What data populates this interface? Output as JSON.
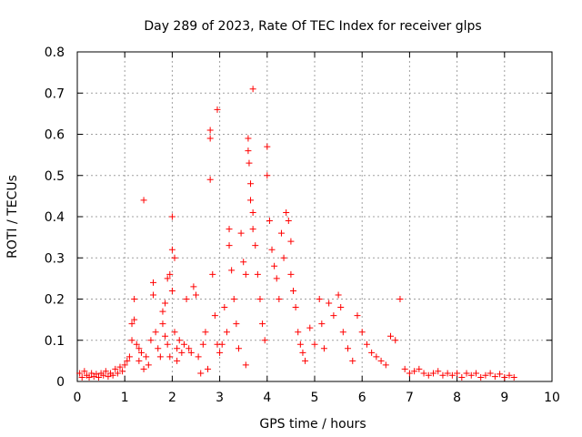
{
  "chart_data": {
    "type": "scatter",
    "title": "Day 289 of 2023, Rate Of TEC Index for receiver glps",
    "xlabel": "GPS time / hours",
    "ylabel": "ROTI / TECUs",
    "xlim": [
      0,
      10
    ],
    "ylim": [
      0,
      0.8
    ],
    "xticks": [
      0,
      1,
      2,
      3,
      4,
      5,
      6,
      7,
      8,
      9,
      10
    ],
    "yticks": [
      0,
      0.1,
      0.2,
      0.3,
      0.4,
      0.5,
      0.6,
      0.7,
      0.8
    ],
    "xtick_labels": [
      "0",
      "1",
      "2",
      "3",
      "4",
      "5",
      "6",
      "7",
      "8",
      "9",
      "10"
    ],
    "ytick_labels": [
      "0",
      "0.1",
      "0.2",
      "0.3",
      "0.4",
      "0.5",
      "0.6",
      "0.7",
      "0.8"
    ],
    "grid": true,
    "marker": "+",
    "color": "#ff0000",
    "series": [
      {
        "points": [
          [
            0.05,
            0.02
          ],
          [
            0.1,
            0.01
          ],
          [
            0.15,
            0.025
          ],
          [
            0.2,
            0.015
          ],
          [
            0.25,
            0.01
          ],
          [
            0.3,
            0.02
          ],
          [
            0.35,
            0.012
          ],
          [
            0.4,
            0.018
          ],
          [
            0.45,
            0.01
          ],
          [
            0.5,
            0.02
          ],
          [
            0.55,
            0.015
          ],
          [
            0.6,
            0.025
          ],
          [
            0.65,
            0.012
          ],
          [
            0.7,
            0.02
          ],
          [
            0.75,
            0.015
          ],
          [
            0.8,
            0.03
          ],
          [
            0.85,
            0.02
          ],
          [
            0.9,
            0.035
          ],
          [
            0.95,
            0.025
          ],
          [
            1.0,
            0.04
          ],
          [
            1.05,
            0.05
          ],
          [
            1.1,
            0.06
          ],
          [
            1.15,
            0.1
          ],
          [
            1.15,
            0.14
          ],
          [
            1.2,
            0.2
          ],
          [
            1.2,
            0.15
          ],
          [
            1.25,
            0.09
          ],
          [
            1.3,
            0.08
          ],
          [
            1.3,
            0.05
          ],
          [
            1.35,
            0.07
          ],
          [
            1.4,
            0.44
          ],
          [
            1.4,
            0.03
          ],
          [
            1.45,
            0.06
          ],
          [
            1.5,
            0.04
          ],
          [
            1.55,
            0.1
          ],
          [
            1.6,
            0.24
          ],
          [
            1.6,
            0.21
          ],
          [
            1.65,
            0.12
          ],
          [
            1.7,
            0.08
          ],
          [
            1.75,
            0.06
          ],
          [
            1.8,
            0.17
          ],
          [
            1.8,
            0.14
          ],
          [
            1.85,
            0.11
          ],
          [
            1.85,
            0.19
          ],
          [
            1.9,
            0.25
          ],
          [
            1.9,
            0.09
          ],
          [
            1.95,
            0.26
          ],
          [
            1.95,
            0.06
          ],
          [
            2.0,
            0.4
          ],
          [
            2.0,
            0.32
          ],
          [
            2.0,
            0.22
          ],
          [
            2.05,
            0.3
          ],
          [
            2.05,
            0.12
          ],
          [
            2.1,
            0.05
          ],
          [
            2.1,
            0.08
          ],
          [
            2.15,
            0.1
          ],
          [
            2.2,
            0.07
          ],
          [
            2.25,
            0.09
          ],
          [
            2.3,
            0.2
          ],
          [
            2.35,
            0.08
          ],
          [
            2.4,
            0.07
          ],
          [
            2.45,
            0.23
          ],
          [
            2.5,
            0.21
          ],
          [
            2.55,
            0.06
          ],
          [
            2.6,
            0.02
          ],
          [
            2.65,
            0.09
          ],
          [
            2.7,
            0.12
          ],
          [
            2.75,
            0.03
          ],
          [
            2.8,
            0.61
          ],
          [
            2.8,
            0.59
          ],
          [
            2.8,
            0.49
          ],
          [
            2.85,
            0.26
          ],
          [
            2.9,
            0.16
          ],
          [
            2.95,
            0.66
          ],
          [
            2.95,
            0.09
          ],
          [
            3.0,
            0.07
          ],
          [
            3.05,
            0.09
          ],
          [
            3.1,
            0.18
          ],
          [
            3.15,
            0.12
          ],
          [
            3.2,
            0.37
          ],
          [
            3.2,
            0.33
          ],
          [
            3.25,
            0.27
          ],
          [
            3.3,
            0.2
          ],
          [
            3.35,
            0.14
          ],
          [
            3.4,
            0.08
          ],
          [
            3.45,
            0.36
          ],
          [
            3.5,
            0.29
          ],
          [
            3.55,
            0.26
          ],
          [
            3.55,
            0.04
          ],
          [
            3.6,
            0.59
          ],
          [
            3.6,
            0.56
          ],
          [
            3.62,
            0.53
          ],
          [
            3.65,
            0.48
          ],
          [
            3.65,
            0.44
          ],
          [
            3.7,
            0.71
          ],
          [
            3.7,
            0.41
          ],
          [
            3.7,
            0.37
          ],
          [
            3.75,
            0.33
          ],
          [
            3.8,
            0.26
          ],
          [
            3.85,
            0.2
          ],
          [
            3.9,
            0.14
          ],
          [
            3.95,
            0.1
          ],
          [
            4.0,
            0.57
          ],
          [
            4.0,
            0.5
          ],
          [
            4.05,
            0.39
          ],
          [
            4.1,
            0.32
          ],
          [
            4.15,
            0.28
          ],
          [
            4.2,
            0.25
          ],
          [
            4.25,
            0.2
          ],
          [
            4.3,
            0.36
          ],
          [
            4.35,
            0.3
          ],
          [
            4.4,
            0.41
          ],
          [
            4.45,
            0.39
          ],
          [
            4.5,
            0.34
          ],
          [
            4.5,
            0.26
          ],
          [
            4.55,
            0.22
          ],
          [
            4.6,
            0.18
          ],
          [
            4.65,
            0.12
          ],
          [
            4.7,
            0.09
          ],
          [
            4.75,
            0.07
          ],
          [
            4.8,
            0.05
          ],
          [
            4.9,
            0.13
          ],
          [
            5.0,
            0.09
          ],
          [
            5.1,
            0.2
          ],
          [
            5.15,
            0.14
          ],
          [
            5.2,
            0.08
          ],
          [
            5.3,
            0.19
          ],
          [
            5.4,
            0.16
          ],
          [
            5.5,
            0.21
          ],
          [
            5.55,
            0.18
          ],
          [
            5.6,
            0.12
          ],
          [
            5.7,
            0.08
          ],
          [
            5.8,
            0.05
          ],
          [
            5.9,
            0.16
          ],
          [
            6.0,
            0.12
          ],
          [
            6.1,
            0.09
          ],
          [
            6.2,
            0.07
          ],
          [
            6.3,
            0.06
          ],
          [
            6.4,
            0.05
          ],
          [
            6.5,
            0.04
          ],
          [
            6.6,
            0.11
          ],
          [
            6.7,
            0.1
          ],
          [
            6.8,
            0.2
          ],
          [
            6.9,
            0.03
          ],
          [
            7.0,
            0.02
          ],
          [
            7.1,
            0.025
          ],
          [
            7.2,
            0.03
          ],
          [
            7.3,
            0.02
          ],
          [
            7.4,
            0.015
          ],
          [
            7.5,
            0.02
          ],
          [
            7.6,
            0.025
          ],
          [
            7.7,
            0.015
          ],
          [
            7.8,
            0.02
          ],
          [
            7.9,
            0.015
          ],
          [
            8.0,
            0.02
          ],
          [
            8.1,
            0.01
          ],
          [
            8.2,
            0.02
          ],
          [
            8.3,
            0.015
          ],
          [
            8.4,
            0.02
          ],
          [
            8.5,
            0.01
          ],
          [
            8.6,
            0.015
          ],
          [
            8.7,
            0.02
          ],
          [
            8.8,
            0.012
          ],
          [
            8.9,
            0.018
          ],
          [
            9.0,
            0.01
          ],
          [
            9.1,
            0.015
          ],
          [
            9.2,
            0.01
          ]
        ]
      }
    ]
  }
}
